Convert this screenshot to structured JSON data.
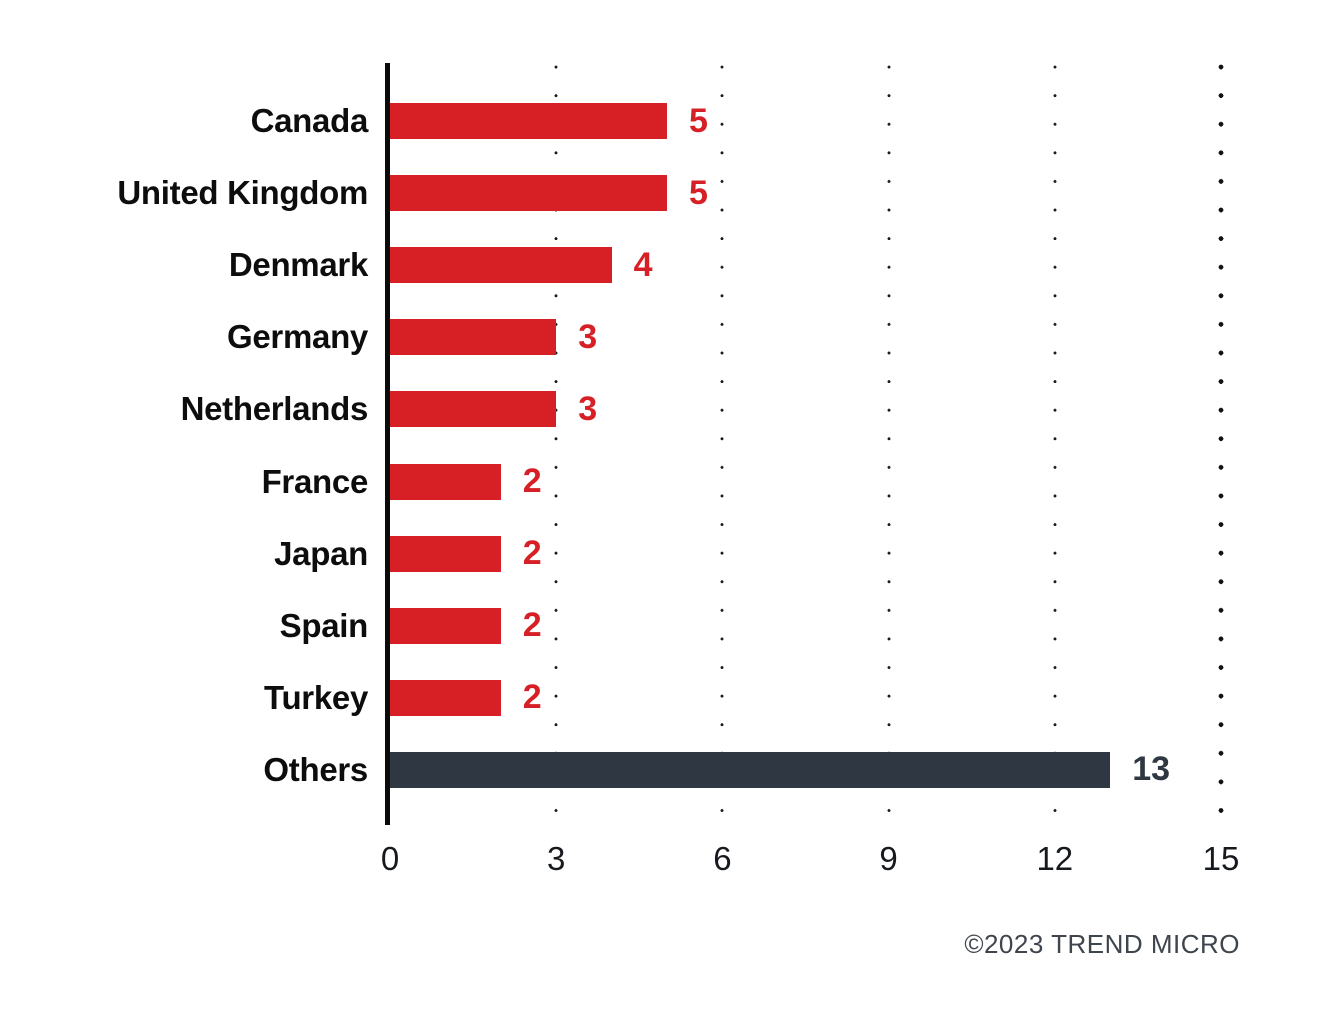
{
  "chart_data": {
    "type": "bar",
    "orientation": "horizontal",
    "categories": [
      "Canada",
      "United Kingdom",
      "Denmark",
      "Germany",
      "Netherlands",
      "France",
      "Japan",
      "Spain",
      "Turkey",
      "Others"
    ],
    "values": [
      5,
      5,
      4,
      3,
      3,
      2,
      2,
      2,
      2,
      13
    ],
    "title": "",
    "xlabel": "",
    "ylabel": "",
    "xlim": [
      0,
      15
    ],
    "xticks": [
      0,
      3,
      6,
      9,
      12,
      15
    ],
    "grid": "dotted-vertical-gridlines",
    "legend": "none",
    "bar_color": "#d71f26",
    "others_bar_color": "#2f3842",
    "value_label_color_default": "#d71f26",
    "value_label_color_others": "#2f3842",
    "category_label_color": "#0d0d0d",
    "axis_line_color": "#0a0a0a"
  },
  "footer": {
    "copyright": "©2023 TREND MICRO"
  }
}
